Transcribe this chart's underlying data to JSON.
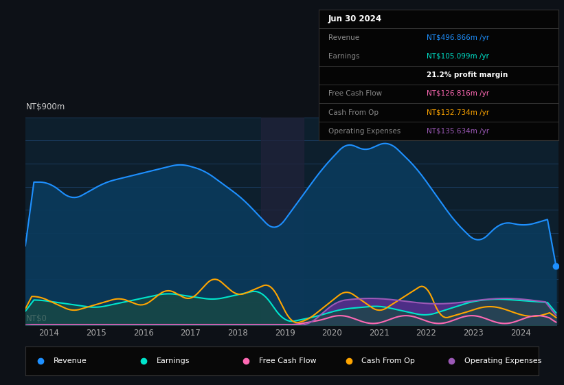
{
  "bg_color": "#0d1117",
  "plot_bg_color": "#0d1f2d",
  "title_date": "Jun 30 2024",
  "ylabel_top": "NT$900m",
  "ylabel_bottom": "NT$0",
  "xlim": [
    2013.5,
    2024.8
  ],
  "ylim": [
    0,
    900
  ],
  "x_ticks": [
    2014,
    2015,
    2016,
    2017,
    2018,
    2019,
    2020,
    2021,
    2022,
    2023,
    2024
  ],
  "revenue_color": "#1e90ff",
  "revenue_fill": "#0a3a5c",
  "earnings_color": "#00e5cc",
  "earnings_fill": "#1a4a44",
  "fcf_color": "#ff69b4",
  "cashop_color": "#ffa500",
  "opex_color": "#9b59b6",
  "opex_fill": "#5a2d8f",
  "shade_start": 2018.5,
  "shade_end": 2019.4,
  "shade_color": "#22223a",
  "info_rows": [
    {
      "label": "Jun 30 2024",
      "value": null,
      "vcolor": null,
      "header": true
    },
    {
      "label": "Revenue",
      "value": "NT$496.866m /yr",
      "vcolor": "#1e90ff",
      "header": false
    },
    {
      "label": "Earnings",
      "value": "NT$105.099m /yr",
      "vcolor": "#00e5cc",
      "header": false
    },
    {
      "label": "",
      "value": "21.2% profit margin",
      "vcolor": "#ffffff",
      "header": false
    },
    {
      "label": "Free Cash Flow",
      "value": "NT$126.816m /yr",
      "vcolor": "#ff69b4",
      "header": false
    },
    {
      "label": "Cash From Op",
      "value": "NT$132.734m /yr",
      "vcolor": "#ffa500",
      "header": false
    },
    {
      "label": "Operating Expenses",
      "value": "NT$135.634m /yr",
      "vcolor": "#9b59b6",
      "header": false
    }
  ],
  "legend": [
    {
      "label": "Revenue",
      "color": "#1e90ff"
    },
    {
      "label": "Earnings",
      "color": "#00e5cc"
    },
    {
      "label": "Free Cash Flow",
      "color": "#ff69b4"
    },
    {
      "label": "Cash From Op",
      "color": "#ffa500"
    },
    {
      "label": "Operating Expenses",
      "color": "#9b59b6"
    }
  ]
}
